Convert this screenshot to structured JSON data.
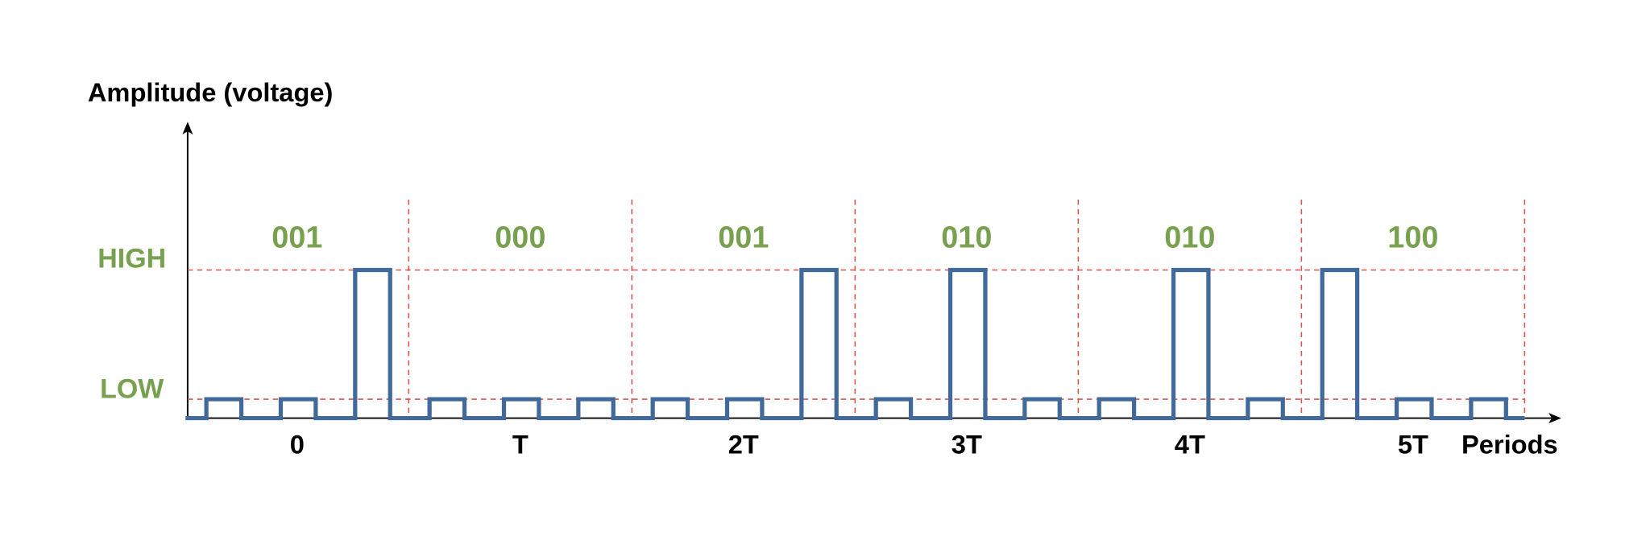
{
  "y_axis_label": "Amplitude (voltage)",
  "x_axis_label": "Periods",
  "levels": {
    "high": "HIGH",
    "low": "LOW"
  },
  "periods": [
    {
      "label": "0",
      "code": "001"
    },
    {
      "label": "T",
      "code": "000"
    },
    {
      "label": "2T",
      "code": "001"
    },
    {
      "label": "3T",
      "code": "010"
    },
    {
      "label": "4T",
      "code": "010"
    },
    {
      "label": "5T",
      "code": "100"
    }
  ]
}
